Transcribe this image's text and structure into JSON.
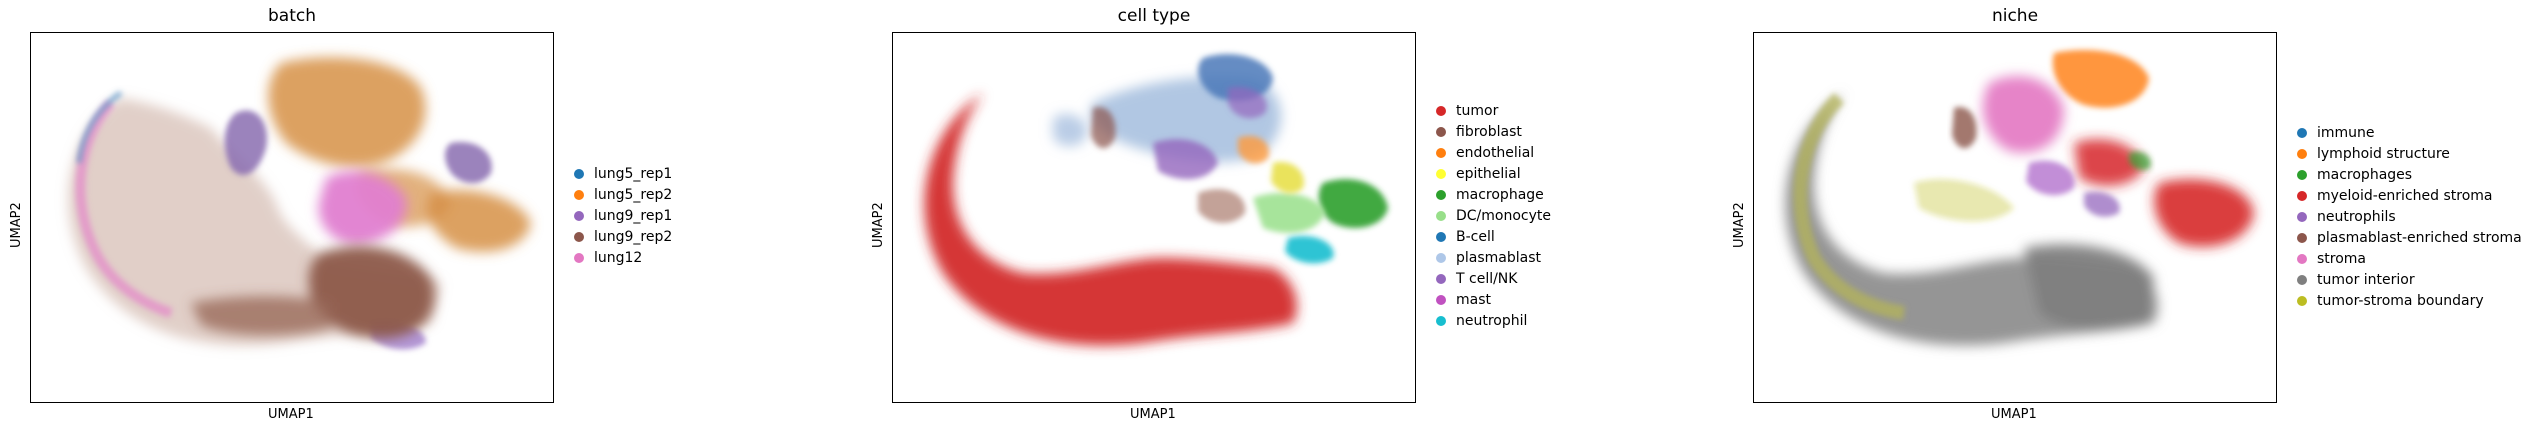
{
  "chart_data": [
    {
      "type": "scatter",
      "title": "batch",
      "xlabel": "UMAP1",
      "ylabel": "UMAP2",
      "grid": false,
      "legend_placement": "right",
      "legend": [
        {
          "label": "lung5_rep1",
          "color": "#1f77b4"
        },
        {
          "label": "lung5_rep2",
          "color": "#ff7f0e"
        },
        {
          "label": "lung9_rep1",
          "color": "#9467bd"
        },
        {
          "label": "lung9_rep2",
          "color": "#8c564b"
        },
        {
          "label": "lung12",
          "color": "#e377c2"
        }
      ]
    },
    {
      "type": "scatter",
      "title": "cell type",
      "xlabel": "UMAP1",
      "ylabel": "UMAP2",
      "grid": false,
      "legend_placement": "right",
      "legend": [
        {
          "label": "tumor",
          "color": "#d62728"
        },
        {
          "label": "fibroblast",
          "color": "#8c564b"
        },
        {
          "label": "endothelial",
          "color": "#ff7f0e"
        },
        {
          "label": "epithelial",
          "color": "#ffff33"
        },
        {
          "label": "macrophage",
          "color": "#2ca02c"
        },
        {
          "label": "DC/monocyte",
          "color": "#98df8a"
        },
        {
          "label": "B-cell",
          "color": "#1f77b4"
        },
        {
          "label": "plasmablast",
          "color": "#aec7e8"
        },
        {
          "label": "T cell/NK",
          "color": "#9467bd"
        },
        {
          "label": "mast",
          "color": "#c051c0"
        },
        {
          "label": "neutrophil",
          "color": "#17becf"
        }
      ]
    },
    {
      "type": "scatter",
      "title": "niche",
      "xlabel": "UMAP1",
      "ylabel": "UMAP2",
      "grid": false,
      "legend_placement": "right",
      "legend": [
        {
          "label": "immune",
          "color": "#1f77b4"
        },
        {
          "label": "lymphoid structure",
          "color": "#ff7f0e"
        },
        {
          "label": "macrophages",
          "color": "#2ca02c"
        },
        {
          "label": "myeloid-enriched stroma",
          "color": "#d62728"
        },
        {
          "label": "neutrophils",
          "color": "#9467bd"
        },
        {
          "label": "plasmablast-enriched stroma",
          "color": "#8c564b"
        },
        {
          "label": "stroma",
          "color": "#e377c2"
        },
        {
          "label": "tumor interior",
          "color": "#7f7f7f"
        },
        {
          "label": "tumor-stroma boundary",
          "color": "#bcbd22"
        }
      ]
    }
  ]
}
